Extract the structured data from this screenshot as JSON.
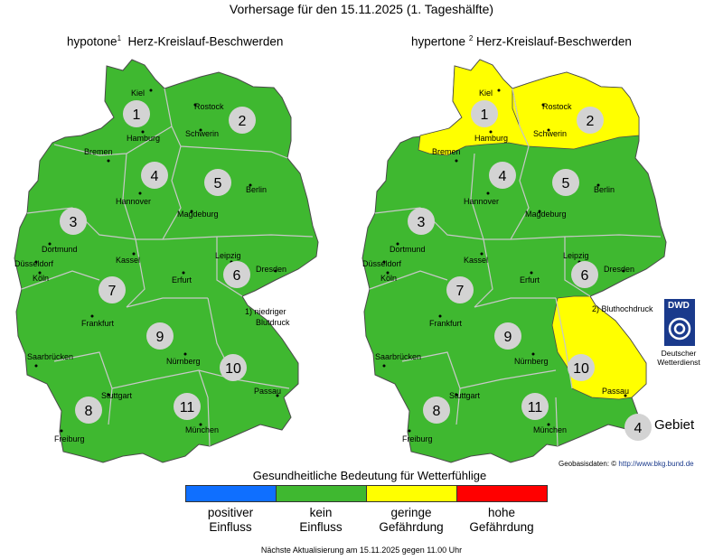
{
  "header": {
    "title": "Vorhersage für den 15.11.2025 (1. Tageshälfte)"
  },
  "maps": {
    "left": {
      "title": "hypotone",
      "sup": "1",
      "title_suffix": "Herz-Kreislauf-Beschwerden"
    },
    "right": {
      "title": "hypertone",
      "sup": "2",
      "title_suffix": "Herz-Kreislauf-Beschwerden"
    }
  },
  "cities": {
    "kiel": "Kiel",
    "rostock": "Rostock",
    "hamburg": "Hamburg",
    "schwerin": "Schwerin",
    "bremen": "Bremen",
    "hannover": "Hannover",
    "berlin": "Berlin",
    "magdeburg": "Magdeburg",
    "dortmund": "Dortmund",
    "duesseldorf": "Düsseldorf",
    "koeln": "Köln",
    "kassel": "Kassel",
    "leipzig": "Leipzig",
    "dresden": "Dresden",
    "erfurt": "Erfurt",
    "frankfurt": "Frankfurt",
    "saarbruecken": "Saarbrücken",
    "nuernberg": "Nürnberg",
    "stuttgart": "Stuttgart",
    "passau": "Passau",
    "freiburg": "Freiburg",
    "muenchen": "München"
  },
  "regions": {
    "r1": "1",
    "r2": "2",
    "r3": "3",
    "r4": "4",
    "r5": "5",
    "r6": "6",
    "r7": "7",
    "r8": "8",
    "r9": "9",
    "r10": "10",
    "r11": "11"
  },
  "risk_levels": {
    "left_map": {
      "1": "kein Einfluss",
      "2": "kein Einfluss",
      "3": "kein Einfluss",
      "4": "kein Einfluss",
      "5": "kein Einfluss",
      "6": "kein Einfluss",
      "7": "kein Einfluss",
      "8": "kein Einfluss",
      "9": "kein Einfluss",
      "10": "kein Einfluss",
      "11": "kein Einfluss"
    },
    "right_map": {
      "1": "geringe Gefährdung",
      "2": "geringe Gefährdung",
      "3": "kein Einfluss",
      "4": "kein Einfluss",
      "5": "kein Einfluss",
      "6": "kein Einfluss",
      "7": "kein Einfluss",
      "8": "kein Einfluss",
      "9": "kein Einfluss",
      "10": "geringe Gefährdung",
      "11": "kein Einfluss"
    }
  },
  "notes": {
    "note1_line1": "1) niedriger",
    "note1_line2": "Blutdruck",
    "note2": "2) Bluthochdruck"
  },
  "dwd": {
    "logo_text": "DWD",
    "caption_line1": "Deutscher",
    "caption_line2": "Wetterdienst"
  },
  "region_legend": {
    "number": "4",
    "label": "Gebiet"
  },
  "geobasis": {
    "label": "Geobasisdaten:",
    "symbol": "©",
    "link": "http://www.bkg.bund.de"
  },
  "legend": {
    "title": "Gesundheitliche Bedeutung für Wetterfühlige",
    "items": [
      {
        "line1": "positiver",
        "line2": "Einfluss",
        "color": "#0f6fff"
      },
      {
        "line1": "kein",
        "line2": "Einfluss",
        "color": "#3fb830"
      },
      {
        "line1": "geringe",
        "line2": "Gefährdung",
        "color": "#ffff00"
      },
      {
        "line1": "hohe",
        "line2": "Gefährdung",
        "color": "#ff0000"
      }
    ]
  },
  "footer": {
    "text": "Nächste Aktualisierung am 15.11.2025 gegen 11.00 Uhr"
  }
}
